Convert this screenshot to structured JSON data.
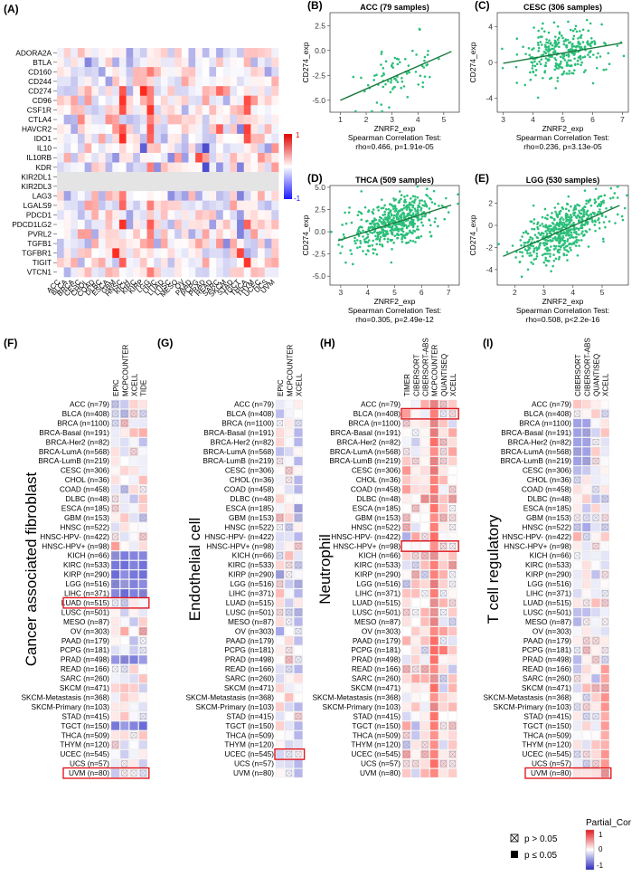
{
  "panel_a": {
    "label": "(A)",
    "rows": [
      "ADORA2A",
      "BTLA",
      "CD160",
      "CD244",
      "CD274",
      "CD96",
      "CSF1R",
      "CTLA4",
      "HAVCR2",
      "IDO1",
      "IL10",
      "IL10RB",
      "KDR",
      "KIR2DL1",
      "KIR2DL3",
      "LAG3",
      "LGALS9",
      "PDCD1",
      "PDCD1LG2",
      "PVRL2",
      "TGFB1",
      "TGFBR1",
      "TIGIT",
      "VTCN1"
    ],
    "cols": [
      "ACC",
      "BLCA",
      "BRCA",
      "CESC",
      "CHOL",
      "COAD",
      "DLBC",
      "ESCA",
      "GBM",
      "HNSC",
      "KICH",
      "KIRC",
      "KIRP",
      "LGG",
      "LIHC",
      "LUAD",
      "LUSC",
      "MESO",
      "OV",
      "PAAD",
      "PCPG",
      "PRAD",
      "READ",
      "SARC",
      "SKCM",
      "STAD",
      "TGCT",
      "THCA",
      "THYM",
      "UCEC",
      "UCS",
      "UVM"
    ],
    "scale_max": "1",
    "scale_min": "-1"
  },
  "scatter_panels": [
    {
      "label": "(B)",
      "title": "ACC (79 samples)",
      "ylabel": "CD274_exp",
      "xlabel": "ZNRF2_exp",
      "test": "Spearman Correlation Test:",
      "stat": "rho=0.466, p=1.91e-05",
      "xticks": [
        "1",
        "2",
        "3",
        "4",
        "5"
      ],
      "yticks": [
        "2.5",
        "0.0",
        "-2.5",
        "-5.0"
      ],
      "xlim": [
        0.6,
        5.6
      ],
      "ylim": [
        -6.2,
        3.8
      ],
      "n": 79,
      "rho": 0.466,
      "line": [
        [
          1,
          -5.0
        ],
        [
          5.3,
          -0.1
        ]
      ]
    },
    {
      "label": "(C)",
      "title": "CESC (306 samples)",
      "ylabel": "CD274_exp",
      "xlabel": "ZNRF2_exp",
      "test": "Spearman Correlation Test:",
      "stat": "rho=0.236, p=3.13e-05",
      "xticks": [
        "3",
        "4",
        "5",
        "6",
        "7"
      ],
      "yticks": [
        "4",
        "0",
        "-4"
      ],
      "xlim": [
        2.8,
        7.2
      ],
      "ylim": [
        -5.6,
        5.6
      ],
      "n": 306,
      "rho": 0.236,
      "line": [
        [
          3,
          -0.1
        ],
        [
          7,
          2.2
        ]
      ]
    },
    {
      "label": "(D)",
      "title": "THCA (509 samples)",
      "ylabel": "CD274_exp",
      "xlabel": "ZNRF2_exp",
      "test": "Spearman Correlation Test:",
      "stat": "rho=0.305, p=2.49e-12",
      "xticks": [
        "3",
        "4",
        "5",
        "6",
        "7"
      ],
      "yticks": [
        "5.0",
        "2.5",
        "0.0",
        "-2.5",
        "-5.0"
      ],
      "xlim": [
        2.6,
        7.4
      ],
      "ylim": [
        -6.0,
        5.2
      ],
      "n": 509,
      "rho": 0.305,
      "line": [
        [
          2.9,
          -1.0
        ],
        [
          7.1,
          3.0
        ]
      ]
    },
    {
      "label": "(E)",
      "title": "LGG (530 samples)",
      "ylabel": "CD274_exp",
      "xlabel": "ZNRF2_exp",
      "test": "Spearman Correlation Test:",
      "stat": "rho=0.508, p<2.2e-16",
      "xticks": [
        "2",
        "3",
        "4",
        "5"
      ],
      "yticks": [
        "2",
        "0",
        "-2",
        "-4"
      ],
      "xlim": [
        1.4,
        5.9
      ],
      "ylim": [
        -5.4,
        3.6
      ],
      "n": 530,
      "rho": 0.508,
      "line": [
        [
          1.6,
          -2.8
        ],
        [
          5.6,
          1.8
        ]
      ]
    }
  ],
  "heat_panels": [
    {
      "label": "(F)",
      "title": "Cancer associated fibroblast",
      "cols": [
        "EPIC",
        "MCPCOUNTER",
        "XCELL",
        "TIDE"
      ],
      "highlight_rows": [
        21,
        40
      ]
    },
    {
      "label": "(G)",
      "title": "Endothelial cell",
      "cols": [
        "EPIC",
        "MCPCOUNTER",
        "XCELL"
      ],
      "highlight_rows": [
        37
      ]
    },
    {
      "label": "(H)",
      "title": "Neutrophil",
      "cols": [
        "TIMER",
        "CIBERSORT",
        "CIBERSORT-ABS",
        "MCPCOUNTER",
        "QUANTISEQ",
        "XCELL"
      ],
      "highlight_rows": [
        1,
        15
      ]
    },
    {
      "label": "(I)",
      "title": "T cell regulatory",
      "cols": [
        "CIBERSORT",
        "CIBERSORT-ABS",
        "QUANTISEQ",
        "XCELL"
      ],
      "highlight_rows": [
        41
      ]
    }
  ],
  "cancer_rows": [
    "ACC (n=79)",
    "BLCA (n=408)",
    "BRCA (n=1100)",
    "BRCA-Basal (n=191)",
    "BRCA-Her2 (n=82)",
    "BRCA-LumA (n=568)",
    "BRCA-LumB (n=219)",
    "CESC (n=306)",
    "CHOL (n=36)",
    "COAD (n=458)",
    "DLBC (n=48)",
    "ESCA (n=185)",
    "GBM (n=153)",
    "HNSC (n=522)",
    "HNSC-HPV- (n=422)",
    "HNSC-HPV+ (n=98)",
    "KICH (n=66)",
    "KIRC (n=533)",
    "KIRP (n=290)",
    "LGG (n=516)",
    "LIHC (n=371)",
    "LUAD (n=515)",
    "LUSC (n=501)",
    "MESO (n=87)",
    "OV (n=303)",
    "PAAD (n=179)",
    "PCPG (n=181)",
    "PRAD (n=498)",
    "READ (n=166)",
    "SARC (n=260)",
    "SKCM (n=471)",
    "SKCM-Metastasis (n=368)",
    "SKCM-Primary (n=103)",
    "STAD (n=415)",
    "TGCT (n=150)",
    "THCA (n=509)",
    "THYM (n=120)",
    "UCEC (n=545)",
    "UCS (n=57)",
    "UVM (n=80)"
  ],
  "legend": {
    "p_gt": "p > 0.05",
    "p_le": "p ≤ 0.05",
    "title": "Partial_Cor",
    "max": "1",
    "mid": "0",
    "min": "-1"
  },
  "colors": {
    "red": "#e31a1c",
    "blue": "#2b35c9",
    "scatter": "#2bbf7a",
    "line": "#1b7a3e",
    "highlight": "#e0191f"
  }
}
